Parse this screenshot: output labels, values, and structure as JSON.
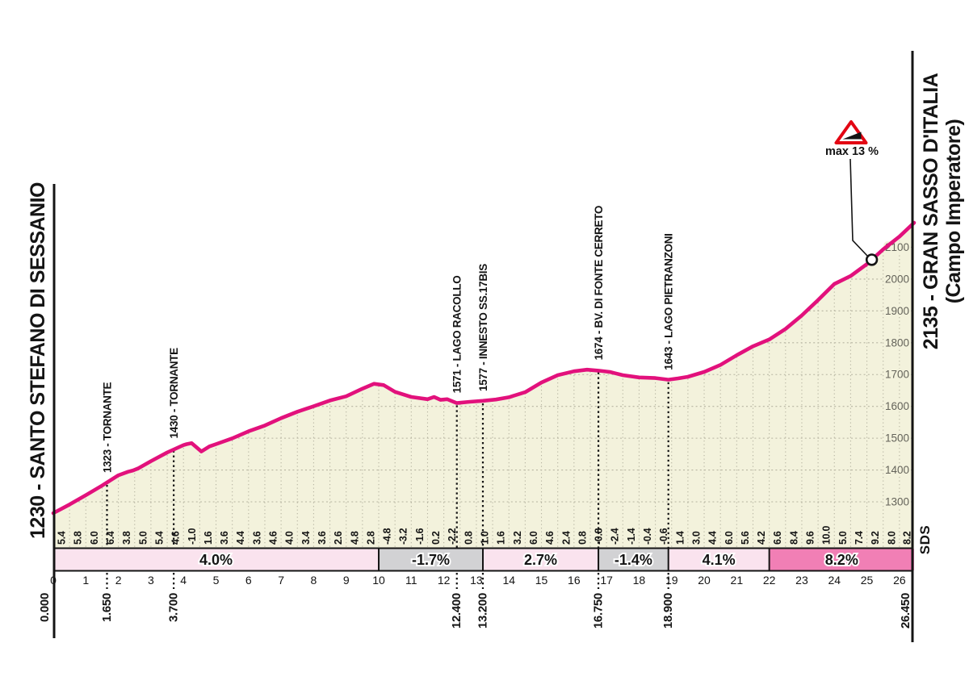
{
  "titles": {
    "start": "1230 - SANTO STEFANO DI SESSANIO",
    "end_line1": "2135 - GRAN SASSO D'ITALIA",
    "end_line2": "(Campo Imperatore)"
  },
  "max_gradient": {
    "text": "max 13 %",
    "km": 25.15
  },
  "credit": "SDS",
  "colors": {
    "line": "#E2117C",
    "fill": "#F3F2DC",
    "grid": "#B6B4A1",
    "landmark_line": "#141414",
    "band_light": "#FAE3EE",
    "band_gray": "#D2D2D4",
    "band_strong": "#F17FB5",
    "warning_red": "#E30613"
  },
  "chart_data": {
    "type": "area",
    "title": "Climb profile Santo Stefano di Sessanio - Gran Sasso d'Italia (Campo Imperatore)",
    "x_unit": "km",
    "y_unit": "m",
    "x_range": [
      0,
      26.45
    ],
    "start_elevation": 1230,
    "end_elevation": 2135,
    "elevation_ticks": [
      1300,
      1400,
      1500,
      1600,
      1700,
      1800,
      1900,
      2000,
      2100
    ],
    "km_ticks": [
      0,
      1,
      2,
      3,
      4,
      5,
      6,
      7,
      8,
      9,
      10,
      11,
      12,
      13,
      14,
      15,
      16,
      17,
      18,
      19,
      20,
      21,
      22,
      23,
      24,
      25,
      26
    ],
    "profile_points": [
      [
        0,
        1230
      ],
      [
        0.5,
        1257
      ],
      [
        1,
        1286
      ],
      [
        1.5,
        1316
      ],
      [
        2,
        1348
      ],
      [
        2.3,
        1359
      ],
      [
        2.45,
        1363
      ],
      [
        2.6,
        1369
      ],
      [
        3,
        1392
      ],
      [
        3.5,
        1419
      ],
      [
        4,
        1442
      ],
      [
        4.1,
        1445
      ],
      [
        4.25,
        1448
      ],
      [
        4.55,
        1422
      ],
      [
        4.8,
        1438
      ],
      [
        5,
        1445
      ],
      [
        5.5,
        1463
      ],
      [
        6,
        1485
      ],
      [
        6.5,
        1503
      ],
      [
        7,
        1526
      ],
      [
        7.5,
        1546
      ],
      [
        8,
        1563
      ],
      [
        8.5,
        1581
      ],
      [
        9,
        1594
      ],
      [
        9.5,
        1618
      ],
      [
        9.85,
        1633
      ],
      [
        10.15,
        1629
      ],
      [
        10.5,
        1608
      ],
      [
        11,
        1592
      ],
      [
        11.5,
        1585
      ],
      [
        11.7,
        1592
      ],
      [
        11.9,
        1583
      ],
      [
        12.1,
        1585
      ],
      [
        12.4,
        1573
      ],
      [
        12.8,
        1577
      ],
      [
        13.2,
        1580
      ],
      [
        13.6,
        1584
      ],
      [
        14,
        1591
      ],
      [
        14.5,
        1607
      ],
      [
        15,
        1637
      ],
      [
        15.5,
        1660
      ],
      [
        16,
        1672
      ],
      [
        16.4,
        1677
      ],
      [
        16.75,
        1674
      ],
      [
        17.1,
        1670
      ],
      [
        17.5,
        1660
      ],
      [
        18,
        1653
      ],
      [
        18.5,
        1651
      ],
      [
        18.9,
        1646
      ],
      [
        19.2,
        1650
      ],
      [
        19.5,
        1655
      ],
      [
        20,
        1670
      ],
      [
        20.5,
        1692
      ],
      [
        21,
        1722
      ],
      [
        21.5,
        1750
      ],
      [
        22,
        1771
      ],
      [
        22.5,
        1804
      ],
      [
        23,
        1846
      ],
      [
        23.5,
        1894
      ],
      [
        24,
        1944
      ],
      [
        24.5,
        1969
      ],
      [
        25,
        2006
      ],
      [
        25.5,
        2052
      ],
      [
        26,
        2092
      ],
      [
        26.45,
        2135
      ]
    ],
    "gradients_per_500m": [
      5.4,
      5.8,
      6.0,
      6.4,
      3.8,
      5.0,
      5.4,
      4.6,
      -1.0,
      1.6,
      3.6,
      4.4,
      3.6,
      4.6,
      4.0,
      3.4,
      3.6,
      2.6,
      4.8,
      2.8,
      -4.8,
      -3.2,
      -1.6,
      0.2,
      -2.2,
      0.8,
      1.0,
      1.6,
      3.2,
      6.0,
      4.6,
      2.4,
      0.8,
      -0.8,
      -2.4,
      -1.4,
      -0.4,
      -0.6,
      1.4,
      3.0,
      4.4,
      6.0,
      5.6,
      4.2,
      6.6,
      8.4,
      9.6,
      10.0,
      5.0,
      7.4,
      9.2,
      8.0,
      8.2
    ],
    "segments": [
      {
        "from": 0,
        "to": 10,
        "label": "4.0%",
        "style": "light"
      },
      {
        "from": 10,
        "to": 13.2,
        "label": "-1.7%",
        "style": "gray"
      },
      {
        "from": 13.2,
        "to": 16.75,
        "label": "2.7%",
        "style": "light"
      },
      {
        "from": 16.75,
        "to": 18.9,
        "label": "-1.4%",
        "style": "gray"
      },
      {
        "from": 18.9,
        "to": 22,
        "label": "4.1%",
        "style": "light"
      },
      {
        "from": 22,
        "to": 26.45,
        "label": "8.2%",
        "style": "strong"
      }
    ],
    "landmarks": [
      {
        "km": 1.65,
        "elev": 1323,
        "label": "1323 - TORNANTE"
      },
      {
        "km": 3.7,
        "elev": 1430,
        "label": "1430 - TORNANTE"
      },
      {
        "km": 12.4,
        "elev": 1571,
        "label": "1571 - LAGO RACOLLO"
      },
      {
        "km": 13.2,
        "elev": 1577,
        "label": "1577 - INNESTO SS.17BIS"
      },
      {
        "km": 16.75,
        "elev": 1674,
        "label": "1674 - BV. DI FONTE CERRETO"
      },
      {
        "km": 18.9,
        "elev": 1643,
        "label": "1643 - LAGO PIETRANZONI"
      }
    ],
    "distance_labels": [
      {
        "km": 0,
        "text": "0.000"
      },
      {
        "km": 1.65,
        "text": "1.650"
      },
      {
        "km": 3.7,
        "text": "3.700"
      },
      {
        "km": 12.4,
        "text": "12.400"
      },
      {
        "km": 13.2,
        "text": "13.200"
      },
      {
        "km": 16.75,
        "text": "16.750"
      },
      {
        "km": 18.9,
        "text": "18.900"
      },
      {
        "km": 26.45,
        "text": "26.450"
      }
    ]
  }
}
